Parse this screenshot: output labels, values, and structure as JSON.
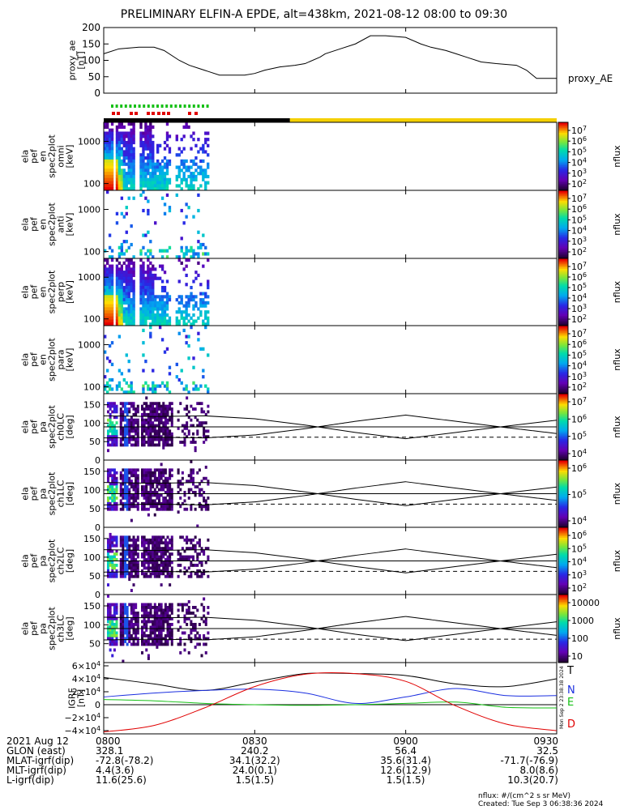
{
  "title": "PRELIMINARY ELFIN-A EPDE, alt=438km, 2021-08-12 08:00 to 09:30",
  "colors": {
    "black": "#000000",
    "yellow": "#f4d000",
    "red": "#e00000",
    "green": "#16c016",
    "blue": "#1a2ee0",
    "spec_bg": "#ffffff"
  },
  "chart_data": {
    "type": "multi-panel",
    "x_range_min": [
      0,
      90
    ],
    "x_tick_labels": [
      "0800",
      "0830",
      "0900",
      "0930"
    ],
    "x_tick_values": [
      0,
      30,
      60,
      90
    ],
    "ae": {
      "ylabel": "proxy_ae\n[nT]",
      "ylim": [
        0,
        200
      ],
      "yticks": [
        "0",
        "50",
        "100",
        "150",
        "200"
      ],
      "yticks_values": [
        0,
        50,
        100,
        150,
        200
      ],
      "legend": "proxy_AE",
      "x": [
        0,
        3,
        7,
        10,
        12,
        15,
        17,
        19,
        21,
        23,
        26,
        28,
        30,
        32,
        35,
        38,
        40,
        43,
        44,
        47,
        50,
        53,
        56,
        60,
        63,
        65,
        68,
        70,
        72,
        75,
        78,
        82,
        84,
        86,
        88,
        90
      ],
      "y": [
        120,
        135,
        140,
        140,
        130,
        100,
        85,
        75,
        65,
        55,
        55,
        55,
        60,
        70,
        80,
        85,
        90,
        110,
        120,
        135,
        150,
        175,
        175,
        170,
        150,
        140,
        130,
        120,
        110,
        95,
        90,
        85,
        70,
        45,
        45,
        45
      ]
    },
    "status_bar": {
      "black_until_min": 37,
      "yellow_after_min": 37
    },
    "markers": {
      "green_segments": 22,
      "red_segments": 11
    },
    "spectral_panels": [
      {
        "label": "ela\npef\nen\nspec2plot\nomni\n[keV]",
        "yticks": [
          "1000",
          "100"
        ],
        "cbar_ticks": [
          "10^7",
          "10^6",
          "10^5",
          "10^4",
          "10^3",
          "10^2"
        ],
        "cbar_label": "nflux"
      },
      {
        "label": "ela\npef\nen\nspec2plot\nanti\n[keV]",
        "yticks": [
          "1000",
          "100"
        ],
        "cbar_ticks": [
          "10^7",
          "10^6",
          "10^5",
          "10^4",
          "10^3",
          "10^2"
        ],
        "cbar_label": "nflux"
      },
      {
        "label": "ela\npef\nen\nspec2plot\nperp\n[keV]",
        "yticks": [
          "1000",
          "100"
        ],
        "cbar_ticks": [
          "10^7",
          "10^6",
          "10^5",
          "10^4",
          "10^3",
          "10^2"
        ],
        "cbar_label": "nflux"
      },
      {
        "label": "ela\npef\nen\nspec2plot\npara\n[keV]",
        "yticks": [
          "1000",
          "100"
        ],
        "cbar_ticks": [
          "10^7",
          "10^6",
          "10^5",
          "10^4",
          "10^3",
          "10^2"
        ],
        "cbar_label": "nflux"
      }
    ],
    "pa_panels": [
      {
        "label": "ela\npef\npa\nspec2plot\nch0LC\n[deg]",
        "yticks": [
          "150",
          "100",
          "50",
          "0"
        ],
        "cbar_ticks": [
          "10^7",
          "10^6",
          "10^5",
          "10^4"
        ],
        "cbar_label": "nflux"
      },
      {
        "label": "ela\npef\npa\nspec2plot\nch1LC\n[deg]",
        "yticks": [
          "150",
          "100",
          "50",
          "0"
        ],
        "cbar_ticks": [
          "10^6",
          "10^5",
          "10^4"
        ],
        "cbar_label": "nflux"
      },
      {
        "label": "ela\npef\npa\nspec2plot\nch2LC\n[deg]",
        "yticks": [
          "150",
          "100",
          "50",
          "0"
        ],
        "cbar_ticks": [
          "10^6",
          "10^5",
          "10^4",
          "10^3",
          "10^2"
        ],
        "cbar_label": "nflux"
      },
      {
        "label": "ela\npef\npa\nspec2plot\nch3LC\n[deg]",
        "yticks": [
          "150",
          "100",
          "50"
        ],
        "cbar_ticks": [
          "10000",
          "1000",
          "100",
          "10"
        ],
        "cbar_label": "nflux"
      }
    ],
    "pa_lc_curve": {
      "x": [
        0,
        10,
        20,
        30,
        40,
        50,
        60,
        70,
        80,
        90
      ],
      "y": [
        120,
        118,
        120,
        112,
        95,
        75,
        58,
        75,
        92,
        108
      ]
    },
    "pa_90deg_line": 90,
    "pa_dashed_line": 62,
    "igrf": {
      "ylabel": "IGRF\n[nT]",
      "ylim": [
        -45000,
        65000
      ],
      "yticks": [
        "6×10^4",
        "4×10^4",
        "2×10^4",
        "0",
        "−2×10^4",
        "−4×10^4"
      ],
      "yticks_values": [
        60000,
        40000,
        20000,
        0,
        -20000,
        -40000
      ],
      "series": [
        {
          "name": "T",
          "color": "#000000",
          "x": [
            0,
            10,
            20,
            30,
            40,
            50,
            60,
            70,
            80,
            90
          ],
          "y": [
            42000,
            32000,
            22000,
            35000,
            48000,
            48000,
            45000,
            32000,
            28000,
            40000
          ]
        },
        {
          "name": "N",
          "color": "#1a2ee0",
          "x": [
            0,
            10,
            20,
            30,
            40,
            50,
            60,
            70,
            80,
            90
          ],
          "y": [
            12000,
            18000,
            22000,
            24000,
            18000,
            2000,
            12000,
            25000,
            14000,
            14000
          ]
        },
        {
          "name": "E",
          "color": "#16c016",
          "x": [
            0,
            10,
            20,
            30,
            40,
            50,
            60,
            70,
            80,
            90
          ],
          "y": [
            8000,
            6000,
            2000,
            0,
            -1000,
            0,
            2000,
            4000,
            -4000,
            -5000
          ]
        },
        {
          "name": "D",
          "color": "#e00000",
          "x": [
            0,
            10,
            20,
            30,
            40,
            50,
            60,
            70,
            80,
            90
          ],
          "y": [
            -42000,
            -32000,
            -5000,
            28000,
            47000,
            48000,
            36000,
            -2000,
            -30000,
            -40000
          ]
        }
      ]
    }
  },
  "footer": {
    "rows": [
      {
        "name": "2021 Aug 12",
        "c0": "0800",
        "c1": "0830",
        "c2": "0900",
        "c3": "0930"
      },
      {
        "name": "GLON (east)",
        "c0": "328.1",
        "c1": "240.2",
        "c2": "56.4",
        "c3": "32.5"
      },
      {
        "name": "MLAT-igrf(dip)",
        "c0": "-72.8(-78.2)",
        "c1": "34.1(32.2)",
        "c2": "35.6(31.4)",
        "c3": "-71.7(-76.9)"
      },
      {
        "name": "MLT-igrf(dip)",
        "c0": "4.4(3.6)",
        "c1": "24.0(0.1)",
        "c2": "12.6(12.9)",
        "c3": "8.0(8.6)"
      },
      {
        "name": "L-igrf(dip)",
        "c0": "11.6(25.6)",
        "c1": "1.5(1.5)",
        "c2": "1.5(1.5)",
        "c3": "10.3(20.7)"
      }
    ],
    "units": "nflux: #/(cm^2 s sr MeV)",
    "created": "Created: Tue Sep  3 06:38:36 2024",
    "side_stamp": "Mon Sep  2 23:38:38 2024"
  }
}
